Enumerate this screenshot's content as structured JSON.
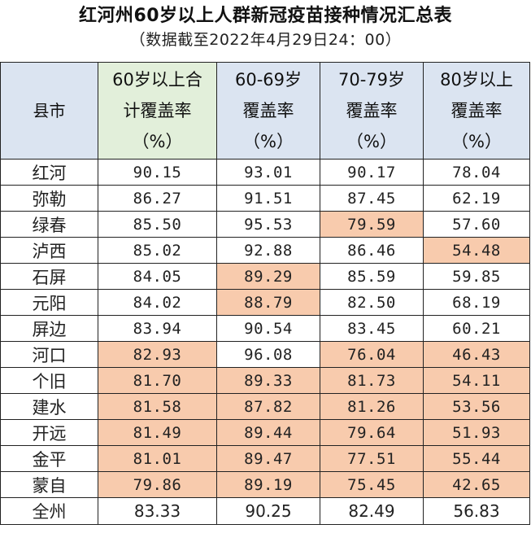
{
  "title": "红河州60岁以上人群新冠疫苗接种情况汇总表",
  "subtitle": "（数据截至2022年4月29日24：00）",
  "headers": {
    "county": "县市",
    "col1": [
      "60岁以上合",
      "计覆盖率",
      "（%）"
    ],
    "col2": [
      "60-69岁",
      "覆盖率",
      "（%）"
    ],
    "col3": [
      "70-79岁",
      "覆盖率",
      "（%）"
    ],
    "col4": [
      "80岁以上",
      "覆盖率",
      "（%）"
    ]
  },
  "rows": [
    {
      "county": "红河",
      "v": [
        "90.15",
        "93.01",
        "90.17",
        "78.04"
      ],
      "hl": [
        false,
        false,
        false,
        false
      ]
    },
    {
      "county": "弥勒",
      "v": [
        "86.27",
        "91.51",
        "87.45",
        "62.19"
      ],
      "hl": [
        false,
        false,
        false,
        false
      ]
    },
    {
      "county": "绿春",
      "v": [
        "85.50",
        "95.53",
        "79.59",
        "57.60"
      ],
      "hl": [
        false,
        false,
        true,
        false
      ]
    },
    {
      "county": "泸西",
      "v": [
        "85.02",
        "92.88",
        "86.46",
        "54.48"
      ],
      "hl": [
        false,
        false,
        false,
        true
      ]
    },
    {
      "county": "石屏",
      "v": [
        "84.05",
        "89.29",
        "85.59",
        "59.85"
      ],
      "hl": [
        false,
        true,
        false,
        false
      ]
    },
    {
      "county": "元阳",
      "v": [
        "84.02",
        "88.79",
        "82.50",
        "68.19"
      ],
      "hl": [
        false,
        true,
        false,
        false
      ]
    },
    {
      "county": "屏边",
      "v": [
        "83.94",
        "90.54",
        "83.45",
        "60.21"
      ],
      "hl": [
        false,
        false,
        false,
        false
      ]
    },
    {
      "county": "河口",
      "v": [
        "82.93",
        "96.08",
        "76.04",
        "46.43"
      ],
      "hl": [
        true,
        false,
        true,
        true
      ]
    },
    {
      "county": "个旧",
      "v": [
        "81.70",
        "89.33",
        "81.73",
        "54.11"
      ],
      "hl": [
        true,
        true,
        true,
        true
      ]
    },
    {
      "county": "建水",
      "v": [
        "81.58",
        "87.82",
        "81.26",
        "53.56"
      ],
      "hl": [
        true,
        true,
        true,
        true
      ]
    },
    {
      "county": "开远",
      "v": [
        "81.49",
        "89.44",
        "79.64",
        "51.93"
      ],
      "hl": [
        true,
        true,
        true,
        true
      ]
    },
    {
      "county": "金平",
      "v": [
        "81.01",
        "89.47",
        "77.51",
        "55.44"
      ],
      "hl": [
        true,
        true,
        true,
        true
      ]
    },
    {
      "county": "蒙自",
      "v": [
        "79.86",
        "89.19",
        "75.45",
        "42.65"
      ],
      "hl": [
        true,
        true,
        true,
        true
      ]
    }
  ],
  "total": {
    "county": "全州",
    "v": [
      "83.33",
      "90.25",
      "82.49",
      "56.83"
    ]
  },
  "colors": {
    "header_bg": "#dbe4f1",
    "header_total_bg": "#e2efda",
    "highlight": "#f8cbad"
  }
}
